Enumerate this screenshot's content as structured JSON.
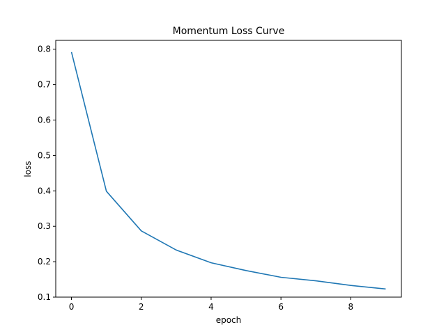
{
  "chart_data": {
    "type": "line",
    "title": "Momentum Loss Curve",
    "xlabel": "epoch",
    "ylabel": "loss",
    "xlim": [
      -0.45,
      9.45
    ],
    "ylim": [
      0.1,
      0.825
    ],
    "xticks": [
      0,
      2,
      4,
      6,
      8
    ],
    "yticks": [
      0.1,
      0.2,
      0.3,
      0.4,
      0.5,
      0.6,
      0.7,
      0.8
    ],
    "xtick_labels": [
      "0",
      "2",
      "4",
      "6",
      "8"
    ],
    "ytick_labels": [
      "0.1",
      "0.2",
      "0.3",
      "0.4",
      "0.5",
      "0.6",
      "0.7",
      "0.8"
    ],
    "grid": false,
    "series": [
      {
        "color": "#1f77b4",
        "x": [
          0,
          1,
          2,
          3,
          4,
          5,
          6,
          7,
          8,
          9
        ],
        "y": [
          0.792,
          0.399,
          0.287,
          0.233,
          0.197,
          0.175,
          0.156,
          0.146,
          0.133,
          0.123
        ]
      }
    ]
  }
}
